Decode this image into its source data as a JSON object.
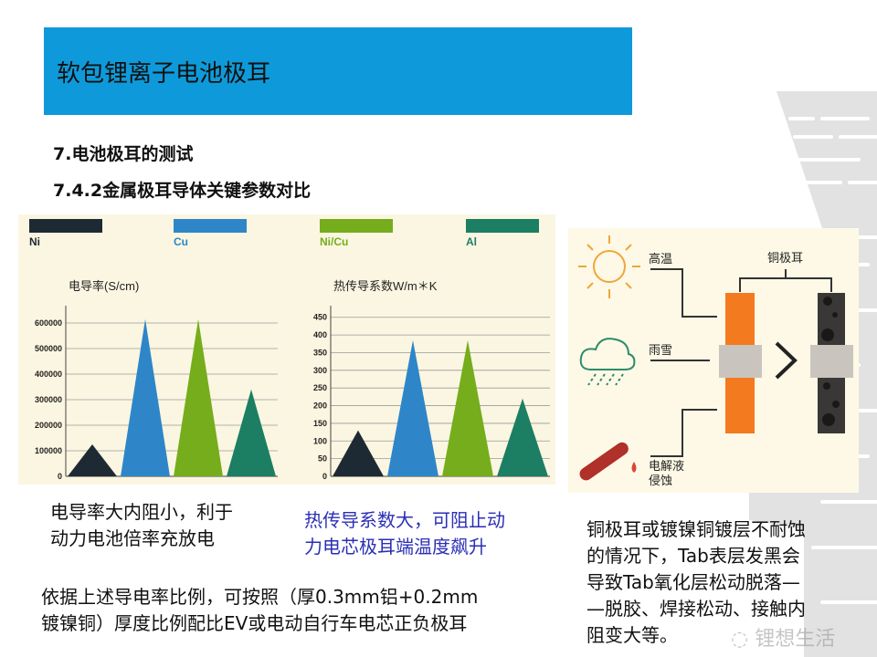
{
  "slide": {
    "title": "软包锂离子电池极耳",
    "section": "7.电池极耳的测试",
    "subsection": "7.4.2金属极耳导体关键参数对比",
    "banner_color": "#0E9ADA"
  },
  "legend": [
    {
      "name": "Ni",
      "color": "#1E2A33"
    },
    {
      "name": "Cu",
      "color": "#2E86C8"
    },
    {
      "name": "Ni/Cu",
      "color": "#76AD1C"
    },
    {
      "name": "Al",
      "color": "#1C7E62"
    }
  ],
  "chart_data": [
    {
      "type": "bar",
      "mark": "triangle",
      "title": "电导率(S/cm)",
      "categories": [
        "Ni",
        "Cu",
        "Ni/Cu",
        "Al"
      ],
      "values": [
        125000,
        615000,
        615000,
        340000
      ],
      "yticks": [
        "0",
        "100000",
        "200000",
        "300000",
        "400000",
        "500000",
        "600000"
      ],
      "ylim": [
        0,
        650000
      ],
      "grid": true,
      "legend_placement": "top"
    },
    {
      "type": "bar",
      "mark": "triangle",
      "title": "热传导系数W/m＊K",
      "categories": [
        "Ni",
        "Cu",
        "Ni/Cu",
        "Al"
      ],
      "values": [
        130,
        385,
        385,
        220
      ],
      "yticks": [
        "0",
        "50",
        "100",
        "150",
        "200",
        "250",
        "300",
        "350",
        "400",
        "450"
      ],
      "ylim": [
        0,
        470
      ],
      "grid": true,
      "legend_placement": "top"
    }
  ],
  "diagram": {
    "labels": {
      "heat": "高温",
      "rain": "雨雪",
      "electrolyte_1": "电解液",
      "electrolyte_2": "侵蚀",
      "tab": "铜极耳"
    },
    "icons": [
      "sun-icon",
      "rain-cloud-icon",
      "test-tube-icon"
    ],
    "colors": {
      "copper_tab": "#F47A20",
      "corroded_tab": "#3A3836",
      "band": "#C9C5BE"
    }
  },
  "notes": {
    "conductivity": [
      "电导率大内阻小，利于",
      "动力电池倍率充放电"
    ],
    "thermal": [
      "热传导系数大，可阻止动",
      "力电芯极耳端温度飙升"
    ],
    "ratio": [
      "依据上述导电率比例，可按照（厚0.3mm铝+0.2mm",
      "镀镍铜）厚度比例配比EV或电动自行车电芯正负极耳"
    ],
    "corrosion": [
      "铜极耳或镀镍铜镀层不耐蚀",
      "的情况下，Tab表层发黑会",
      "导致Tab氧化层松动脱落—",
      "—脱胶、焊接松动、接触内",
      "阻变大等。"
    ]
  },
  "watermark": "锂想生活"
}
